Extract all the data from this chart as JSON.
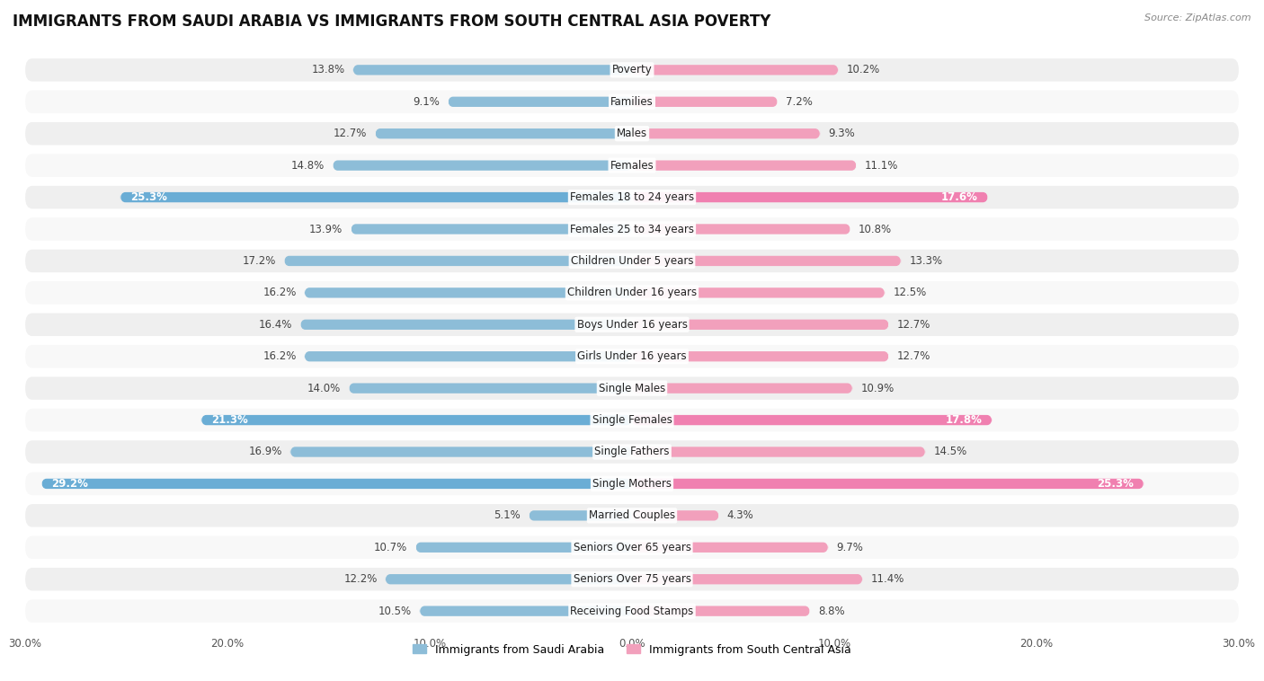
{
  "title": "IMMIGRANTS FROM SAUDI ARABIA VS IMMIGRANTS FROM SOUTH CENTRAL ASIA POVERTY",
  "source": "Source: ZipAtlas.com",
  "categories": [
    "Poverty",
    "Families",
    "Males",
    "Females",
    "Females 18 to 24 years",
    "Females 25 to 34 years",
    "Children Under 5 years",
    "Children Under 16 years",
    "Boys Under 16 years",
    "Girls Under 16 years",
    "Single Males",
    "Single Females",
    "Single Fathers",
    "Single Mothers",
    "Married Couples",
    "Seniors Over 65 years",
    "Seniors Over 75 years",
    "Receiving Food Stamps"
  ],
  "saudi_values": [
    13.8,
    9.1,
    12.7,
    14.8,
    25.3,
    13.9,
    17.2,
    16.2,
    16.4,
    16.2,
    14.0,
    21.3,
    16.9,
    29.2,
    5.1,
    10.7,
    12.2,
    10.5
  ],
  "sca_values": [
    10.2,
    7.2,
    9.3,
    11.1,
    17.6,
    10.8,
    13.3,
    12.5,
    12.7,
    12.7,
    10.9,
    17.8,
    14.5,
    25.3,
    4.3,
    9.7,
    11.4,
    8.8
  ],
  "saudi_color": "#8dbdd8",
  "sca_color": "#f2a0bc",
  "saudi_highlight_color": "#6aadd5",
  "sca_highlight_color": "#f080b0",
  "highlight_rows": [
    4,
    11,
    13
  ],
  "max_val": 30.0,
  "legend_saudi": "Immigrants from Saudi Arabia",
  "legend_sca": "Immigrants from South Central Asia",
  "bg_color": "#ffffff",
  "row_bg_light": "#efefef",
  "row_bg_white": "#f8f8f8",
  "title_fontsize": 12,
  "label_fontsize": 8.5,
  "value_fontsize": 8.5,
  "axis_label_fontsize": 8.5
}
